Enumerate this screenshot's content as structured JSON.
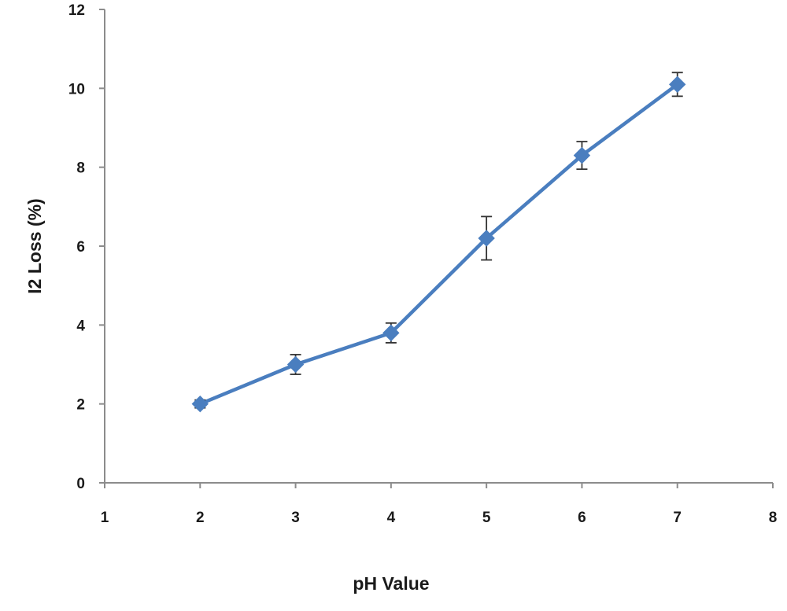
{
  "chart_data": {
    "type": "line",
    "title": "",
    "xlabel": "pH Value",
    "ylabel": "I2 Loss (%)",
    "xlim": [
      1,
      8
    ],
    "ylim": [
      0,
      12
    ],
    "x_ticks": [
      "1",
      "2",
      "3",
      "4",
      "5",
      "6",
      "7",
      "8"
    ],
    "y_ticks": [
      "0",
      "2",
      "4",
      "6",
      "8",
      "10",
      "12"
    ],
    "grid": false,
    "series": [
      {
        "color": "#4a7ebf",
        "marker": "diamond",
        "x": [
          2,
          3,
          4,
          5,
          6,
          7
        ],
        "y": [
          2.0,
          3.0,
          3.8,
          6.2,
          8.3,
          10.1
        ],
        "error": [
          0.1,
          0.25,
          0.25,
          0.55,
          0.35,
          0.3
        ]
      }
    ]
  }
}
